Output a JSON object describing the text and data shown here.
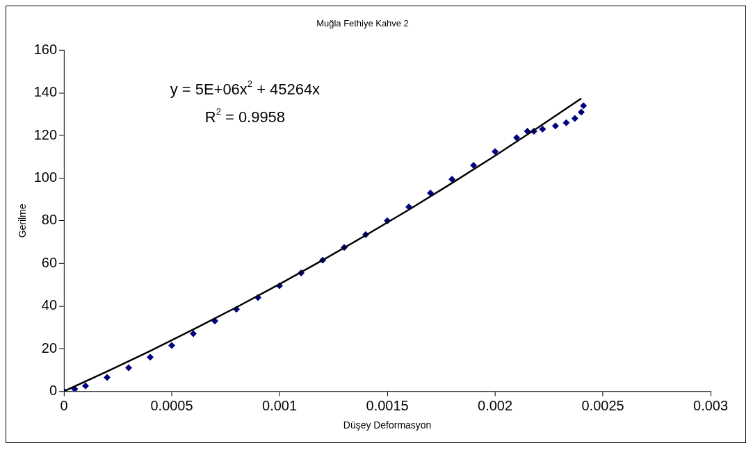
{
  "chart_data": {
    "type": "scatter",
    "title": "Muğla Fethiye Kahve 2",
    "xlabel": "Düşey Deformasyon",
    "ylabel": "Gerilme",
    "annotations": [
      "y = 5E+06x$^{2}$ + 45264x",
      "R$^{2}$ = 0.9958"
    ],
    "xlim": [
      0,
      0.003
    ],
    "xticks": [
      0,
      0.0005,
      0.001,
      0.0015,
      0.002,
      0.0025,
      0.003
    ],
    "ylim": [
      0,
      160
    ],
    "yticks": [
      0,
      20,
      40,
      60,
      80,
      100,
      120,
      140,
      160
    ],
    "grid": false,
    "legend": false,
    "marker": "diamond",
    "series": [
      {
        "color": "#000080",
        "x": [
          0,
          5e-05,
          0.0001,
          0.0002,
          0.0003,
          0.0004,
          0.0005,
          0.0006,
          0.0007,
          0.0008,
          0.0009,
          0.001,
          0.0011,
          0.0012,
          0.0013,
          0.0014,
          0.0015,
          0.0016,
          0.0017,
          0.0018,
          0.0019,
          0.002,
          0.0021,
          0.00215,
          0.00218,
          0.00222,
          0.00228,
          0.00233,
          0.00237,
          0.0024,
          0.00241
        ],
        "values": [
          0,
          1,
          2.5,
          6.5,
          11,
          16,
          21.5,
          27,
          33,
          38.5,
          44,
          49.5,
          55.5,
          61.5,
          67.5,
          73.5,
          80,
          86.5,
          93,
          99.5,
          106,
          112.5,
          119,
          122,
          122,
          123,
          124.5,
          126,
          128,
          131,
          134
        ]
      },
      {
        "type": "line",
        "color": "#000000",
        "marker": "none",
        "line_style": "solid",
        "x": [
          0,
          0.0002,
          0.0004,
          0.0006,
          0.0008,
          0.001,
          0.0012,
          0.0014,
          0.0016,
          0.0018,
          0.002,
          0.0022,
          0.0024
        ],
        "values": [
          0,
          9.3,
          18.9,
          29,
          39.4,
          50.3,
          61.5,
          73.2,
          85.2,
          97.7,
          110.5,
          123.8,
          137.4
        ]
      }
    ]
  }
}
